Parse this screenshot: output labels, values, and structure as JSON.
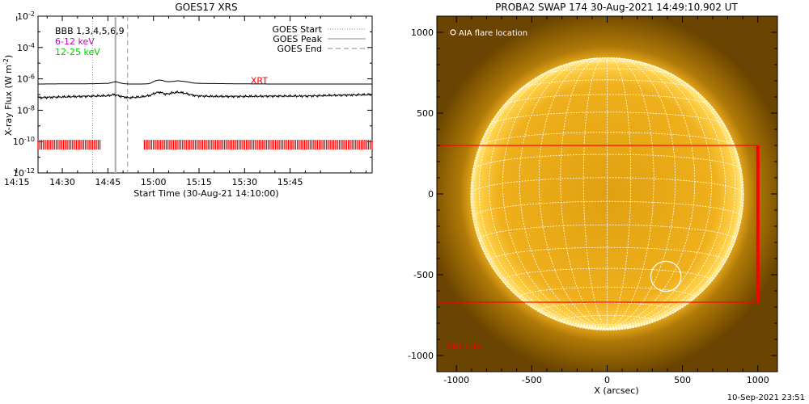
{
  "chart_data": [
    {
      "type": "line",
      "title": "GOES17 XRS",
      "xlabel": "Start Time (30-Aug-21 14:10:00)",
      "ylabel": "X-ray Flux (W m",
      "ylabel_sup": "-2",
      "ylabel_close": ")",
      "yscale": "log",
      "ylim": [
        1e-12,
        0.01
      ],
      "yticks": [
        "10^-2",
        "10^-4",
        "10^-6",
        "10^-8",
        "10^-10",
        "10^-12"
      ],
      "ytick_values": [
        -2,
        -4,
        -6,
        -8,
        -10,
        -12
      ],
      "xlim": [
        12.0,
        122.0
      ],
      "xticks": [
        "14:15",
        "14:30",
        "14:45",
        "15:00",
        "15:15",
        "15:30",
        "15:45"
      ],
      "xtick_minutes": [
        5,
        20,
        35,
        50,
        65,
        80,
        95
      ],
      "energy_labels": [
        {
          "text": "BBB 1,3,4,5,6,9",
          "color": "#000000"
        },
        {
          "text": "6-12 keV",
          "color": "#c000c0"
        },
        {
          "text": "12-25 keV",
          "color": "#00cc00"
        }
      ],
      "legend": [
        {
          "name": "GOES Start",
          "style": "dotted"
        },
        {
          "name": "GOES Peak",
          "style": "solid"
        },
        {
          "name": "GOES End",
          "style": "dashed"
        }
      ],
      "legend_position": "top-right",
      "events": {
        "start_minute": 30,
        "peak_minute": 37.5,
        "end_minute": 41.5
      },
      "xrt_label": "XRT",
      "xrt_label_minute": 82,
      "xrt_label_log": -6.1,
      "series": [
        {
          "name": "",
          "color": "#000000",
          "log_values": {
            "x": [
              12,
              20,
              30,
              35,
              36,
              37,
              37.5,
              38,
              39,
              40,
              41,
              42,
              44,
              46,
              48,
              49,
              50,
              51,
              52,
              53,
              54,
              55,
              56,
              57,
              58,
              60,
              62,
              63,
              64,
              66,
              68,
              70,
              75,
              80,
              90,
              100,
              110,
              122
            ],
            "y": [
              -6.33,
              -6.32,
              -6.31,
              -6.29,
              -6.25,
              -6.2,
              -6.18,
              -6.2,
              -6.26,
              -6.3,
              -6.32,
              -6.33,
              -6.33,
              -6.33,
              -6.32,
              -6.28,
              -6.18,
              -6.1,
              -6.07,
              -6.1,
              -6.17,
              -6.18,
              -6.17,
              -6.15,
              -6.12,
              -6.16,
              -6.22,
              -6.26,
              -6.28,
              -6.29,
              -6.3,
              -6.3,
              -6.31,
              -6.32,
              -6.33,
              -6.33,
              -6.33,
              -6.33
            ]
          }
        },
        {
          "name": "",
          "color": "#000000",
          "log_values": {
            "x": [
              12,
              20,
              30,
              35,
              37,
              38,
              40,
              42,
              46,
              49,
              50,
              51,
              52,
              53,
              54,
              55,
              56,
              57,
              58,
              60,
              62,
              64,
              66,
              70,
              75,
              80,
              90,
              100,
              110,
              122
            ],
            "y": [
              -7.2,
              -7.15,
              -7.1,
              -7.08,
              -7.0,
              -7.05,
              -7.15,
              -7.2,
              -7.15,
              -7.05,
              -6.95,
              -6.88,
              -6.85,
              -6.9,
              -6.98,
              -6.95,
              -6.9,
              -6.88,
              -6.85,
              -6.9,
              -7.0,
              -7.08,
              -7.1,
              -7.12,
              -7.12,
              -7.12,
              -7.1,
              -7.1,
              -7.05,
              -7.0
            ]
          }
        }
      ],
      "xrt_coverage": {
        "color": "#ff0000",
        "log_level": -10.2,
        "segments": [
          [
            12,
            33
          ],
          [
            47,
            122
          ]
        ]
      }
    },
    {
      "type": "scatter",
      "title": "PROBA2 SWAP 174 30-Aug-2021 14:49:10.902 UT",
      "xlabel": "X (arcsec)",
      "ylabel": "",
      "xlim": [
        -1130,
        1130
      ],
      "ylim": [
        -1100,
        1100
      ],
      "xticks": [
        "-1000",
        "-500",
        "0",
        "500",
        "1000"
      ],
      "xtick_values": [
        -1000,
        -500,
        0,
        500,
        1000
      ],
      "yticks": [
        "1000",
        "500",
        "0",
        "-500",
        "-1000"
      ],
      "ytick_values": [
        1000,
        500,
        0,
        -500,
        -1000
      ],
      "solar_radius_arcsec": 905,
      "flare": {
        "label": "AIA flare location",
        "x": 390,
        "y": -510,
        "radius": 100
      },
      "xrt_fov": {
        "label": "XRT FOV",
        "color": "#ff0000",
        "x": [
          -1130,
          1000
        ],
        "y": [
          -670,
          300
        ]
      },
      "colors": {
        "disk": "#f2b21a",
        "limb": "#ffe066",
        "grid": "#ffffff",
        "background": "#7a5000"
      }
    }
  ],
  "footer": {
    "timestamp": "10-Sep-2021 23:51"
  }
}
